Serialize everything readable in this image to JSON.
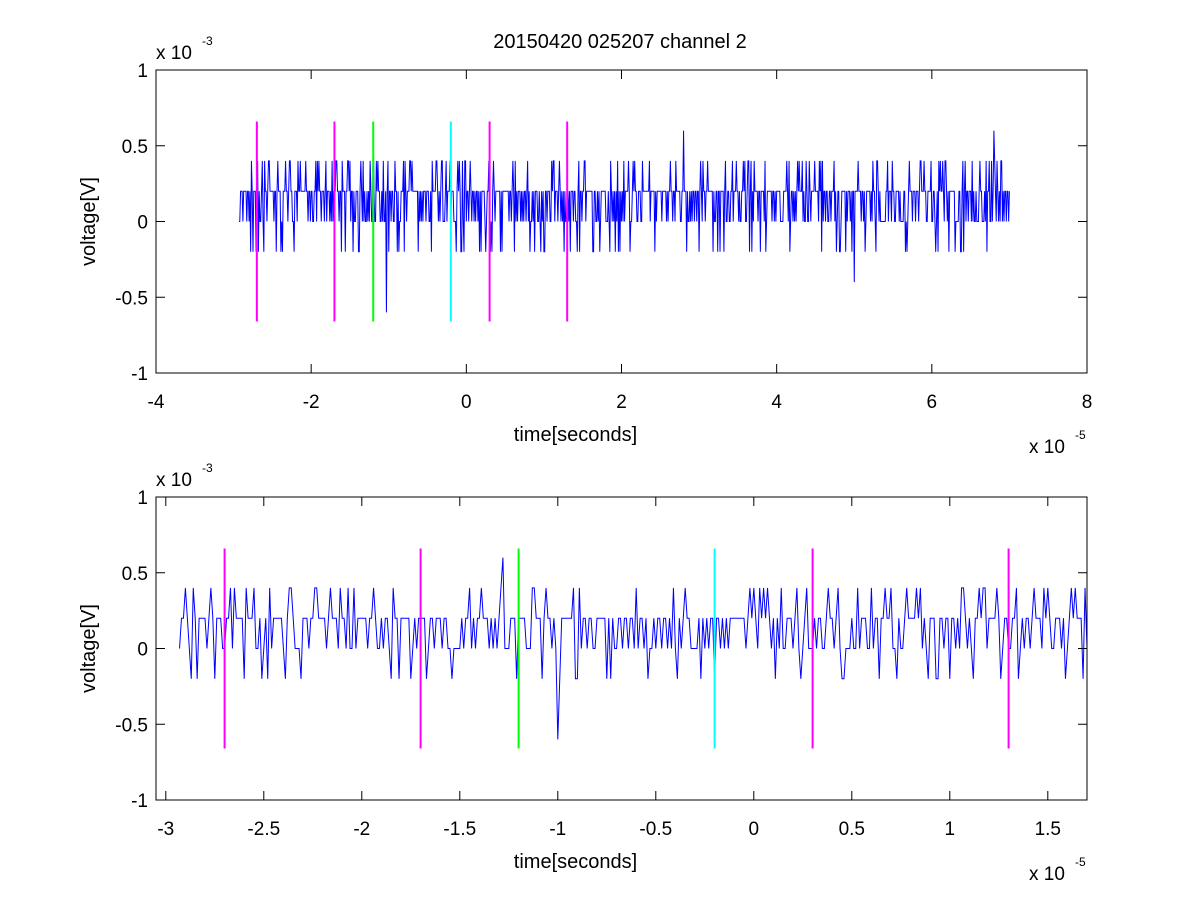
{
  "title": "20150420 025207 channel 2",
  "colors": {
    "trace": "#0000ff",
    "marker_magenta": "#ff00ff",
    "marker_green": "#00ff00",
    "marker_cyan": "#00ffff"
  },
  "chart_data": [
    {
      "type": "line",
      "title": "20150420 025207 channel 2",
      "xlabel": "time[seconds]",
      "ylabel": "voltage[V]",
      "xlim": [
        -4e-05,
        8e-05
      ],
      "ylim": [
        -0.001,
        0.001
      ],
      "x_multiplier": "x 10",
      "x_exponent": "-5",
      "y_multiplier": "x 10",
      "y_exponent": "-3",
      "xticks": [
        -4e-05,
        -2e-05,
        0,
        2e-05,
        4e-05,
        6e-05,
        8e-05
      ],
      "xtick_labels": [
        "-4",
        "-2",
        "0",
        "2",
        "4",
        "6",
        "8"
      ],
      "yticks": [
        -0.001,
        -0.0005,
        0,
        0.0005,
        0.001
      ],
      "ytick_labels": [
        "-1",
        "-0.5",
        "0",
        "0.5",
        "1"
      ],
      "series": [
        {
          "color": "#0000ff",
          "x_start": -2.93e-05,
          "x_end": 7e-05,
          "step": 1e-07,
          "levels": [
            0,
            0.0002,
            0.0004
          ],
          "extremes": [
            {
              "x": -1.03e-05,
              "y": -0.0006
            },
            {
              "x": -1.2e-05,
              "y": 0.0006
            },
            {
              "x": 2.8e-05,
              "y": 0.0006
            },
            {
              "x": 5e-05,
              "y": -0.0004
            },
            {
              "x": 6.8e-05,
              "y": 0.0006
            }
          ]
        }
      ],
      "markers": [
        {
          "x": -2.7e-05,
          "y_min": -0.00066,
          "y_max": 0.00066,
          "color": "#ff00ff"
        },
        {
          "x": -1.7e-05,
          "y_min": -0.00066,
          "y_max": 0.00066,
          "color": "#ff00ff"
        },
        {
          "x": -1.2e-05,
          "y_min": -0.00066,
          "y_max": 0.00066,
          "color": "#00ff00"
        },
        {
          "x": -2e-06,
          "y_min": -0.00066,
          "y_max": 0.00066,
          "color": "#00ffff"
        },
        {
          "x": 3e-06,
          "y_min": -0.00066,
          "y_max": 0.00066,
          "color": "#ff00ff"
        },
        {
          "x": 1.3e-05,
          "y_min": -0.00066,
          "y_max": 0.00066,
          "color": "#ff00ff"
        }
      ]
    },
    {
      "type": "line",
      "xlabel": "time[seconds]",
      "ylabel": "voltage[V]",
      "xlim": [
        -3.05e-05,
        1.7e-05
      ],
      "ylim": [
        -0.001,
        0.001
      ],
      "x_multiplier": "x 10",
      "x_exponent": "-5",
      "y_multiplier": "x 10",
      "y_exponent": "-3",
      "xticks": [
        -3e-05,
        -2.5e-05,
        -2e-05,
        -1.5e-05,
        -1e-05,
        -5e-06,
        0,
        5e-06,
        1e-05,
        1.5e-05
      ],
      "xtick_labels": [
        "-3",
        "-2.5",
        "-2",
        "-1.5",
        "-1",
        "-0.5",
        "0",
        "0.5",
        "1",
        "1.5"
      ],
      "yticks": [
        -0.001,
        -0.0005,
        0,
        0.0005,
        0.001
      ],
      "ytick_labels": [
        "-1",
        "-0.5",
        "0",
        "0.5",
        "1"
      ],
      "series": [
        {
          "color": "#0000ff",
          "x_start": -2.93e-05,
          "x_end": 1.7e-05,
          "step": 1e-07,
          "levels": [
            0,
            0.0002,
            0.0004
          ],
          "extremes": [
            {
              "x": -1.28e-05,
              "y": 0.0006
            },
            {
              "x": -1e-05,
              "y": -0.0006
            },
            {
              "x": -2.6e-05,
              "y": -0.0002
            },
            {
              "x": -1.75e-05,
              "y": -0.0002
            },
            {
              "x": 1.35e-05,
              "y": -0.0002
            }
          ]
        }
      ],
      "markers": [
        {
          "x": -2.7e-05,
          "y_min": -0.00066,
          "y_max": 0.00066,
          "color": "#ff00ff"
        },
        {
          "x": -1.7e-05,
          "y_min": -0.00066,
          "y_max": 0.00066,
          "color": "#ff00ff"
        },
        {
          "x": -1.2e-05,
          "y_min": -0.00066,
          "y_max": 0.00066,
          "color": "#00ff00"
        },
        {
          "x": -2e-06,
          "y_min": -0.00066,
          "y_max": 0.00066,
          "color": "#00ffff"
        },
        {
          "x": 3e-06,
          "y_min": -0.00066,
          "y_max": 0.00066,
          "color": "#ff00ff"
        },
        {
          "x": 1.3e-05,
          "y_min": -0.00066,
          "y_max": 0.00066,
          "color": "#ff00ff"
        }
      ]
    }
  ]
}
